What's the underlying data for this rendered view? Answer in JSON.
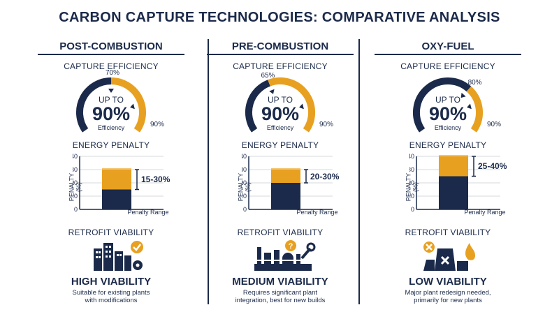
{
  "title": "CARBON CAPTURE TECHNOLOGIES: COMPARATIVE ANALYSIS",
  "labels": {
    "capture_efficiency": "CAPTURE EFFICIENCY",
    "energy_penalty": "ENERGY PENALTY",
    "retrofit_viability": "RETROFIT VIABILITY",
    "up_to": "UP TO",
    "efficiency": "Efficiency",
    "penalty_axis": "PENALTY (%)",
    "penalty_range": "Penalty Range"
  },
  "columns": [
    {
      "name": "POST-COMBUSTION",
      "gauge": {
        "value_text": "90%",
        "low_text": "70%",
        "high_text": "90%",
        "low": 70,
        "high": 90
      },
      "penalty": {
        "range_text": "15-30%",
        "low": 15,
        "high": 30
      },
      "viability": "HIGH VIABILITY",
      "desc_line1": "Suitable for existing plants",
      "desc_line2": "with modifications",
      "icon": "factory-check-gear-icon"
    },
    {
      "name": "PRE-COMBUSTION",
      "gauge": {
        "value_text": "90%",
        "low_text": "65%",
        "high_text": "90%",
        "low": 65,
        "high": 90
      },
      "penalty": {
        "range_text": "20-30%",
        "low": 20,
        "high": 30
      },
      "viability": "MEDIUM VIABILITY",
      "desc_line1": "Requires significant plant",
      "desc_line2": "integration, best for new builds",
      "icon": "plant-question-wrench-icon"
    },
    {
      "name": "OXY-FUEL",
      "gauge": {
        "value_text": "90%",
        "low_text": "80%",
        "high_text": "90%",
        "low": 80,
        "high": 90
      },
      "penalty": {
        "range_text": "25-40%",
        "low": 25,
        "high": 40
      },
      "viability": "LOW VIABILITY",
      "desc_line1": "Major plant redesign needed,",
      "desc_line2": "primarily for new plants",
      "icon": "cooling-tower-x-fire-icon"
    }
  ],
  "chart_data": [
    {
      "type": "bar",
      "title": "ENERGY PENALTY",
      "categories": [
        "Penalty Range"
      ],
      "ylabel": "PENALTY (%)",
      "ylim": [
        0,
        40
      ],
      "yticks": [
        0,
        10,
        20,
        30,
        40
      ],
      "series": [
        {
          "name": "POST-COMBUSTION",
          "low": 15,
          "high": 30
        }
      ]
    },
    {
      "type": "bar",
      "title": "ENERGY PENALTY",
      "categories": [
        "Penalty Range"
      ],
      "ylabel": "PENALTY (%)",
      "ylim": [
        0,
        40
      ],
      "yticks": [
        0,
        10,
        20,
        30,
        40
      ],
      "series": [
        {
          "name": "PRE-COMBUSTION",
          "low": 20,
          "high": 30
        }
      ]
    },
    {
      "type": "bar",
      "title": "ENERGY PENALTY",
      "categories": [
        "Penalty Range"
      ],
      "ylabel": "PENALTY (%)",
      "ylim": [
        0,
        40
      ],
      "yticks": [
        0,
        10,
        20,
        30,
        40
      ],
      "series": [
        {
          "name": "OXY-FUEL",
          "low": 25,
          "high": 40
        }
      ]
    }
  ],
  "colors": {
    "navy": "#1b2a4a",
    "orange": "#e8a020",
    "orange_dark": "#d18b12"
  }
}
